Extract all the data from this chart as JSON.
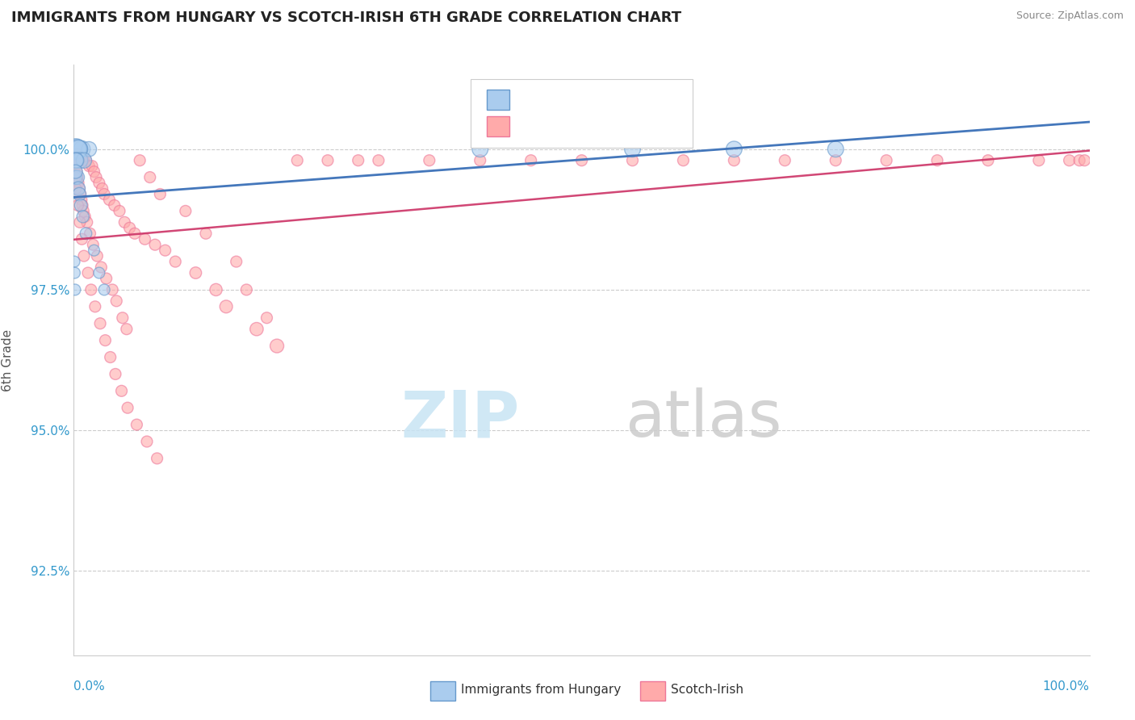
{
  "title": "IMMIGRANTS FROM HUNGARY VS SCOTCH-IRISH 6TH GRADE CORRELATION CHART",
  "source": "Source: ZipAtlas.com",
  "ylabel": "6th Grade",
  "ylim": [
    91.0,
    101.5
  ],
  "xlim": [
    0.0,
    100.0
  ],
  "yticks": [
    92.5,
    95.0,
    97.5,
    100.0
  ],
  "ytick_labels": [
    "92.5%",
    "95.0%",
    "97.5%",
    "100.0%"
  ],
  "blue_color": "#AACCEE",
  "pink_color": "#FFAAAA",
  "blue_edge_color": "#6699CC",
  "pink_edge_color": "#EE7799",
  "blue_line_color": "#4477BB",
  "pink_line_color": "#CC3366",
  "axis_color": "#3399CC",
  "watermark_zip_color": "#C8E4F4",
  "watermark_atlas_color": "#CCCCCC",
  "hungary_x": [
    0.3,
    0.8,
    1.5,
    0.2,
    0.5,
    0.4,
    0.6,
    1.0,
    0.15,
    0.25,
    0.1,
    0.35,
    0.45,
    0.55,
    0.7,
    0.9,
    1.2,
    2.0,
    2.5,
    3.0,
    0.05,
    0.08,
    0.12,
    40.0,
    55.0,
    65.0,
    75.0,
    0.18
  ],
  "hungary_y": [
    100.0,
    100.0,
    100.0,
    100.0,
    100.0,
    100.0,
    99.8,
    99.8,
    99.8,
    99.8,
    99.5,
    99.5,
    99.3,
    99.2,
    99.0,
    98.8,
    98.5,
    98.2,
    97.8,
    97.5,
    98.0,
    97.8,
    97.5,
    100.0,
    100.0,
    100.0,
    100.0,
    99.6
  ],
  "hungary_sizes": [
    300,
    220,
    180,
    350,
    250,
    280,
    200,
    190,
    200,
    180,
    170,
    160,
    150,
    140,
    130,
    120,
    110,
    100,
    100,
    100,
    100,
    100,
    100,
    200,
    200,
    200,
    200,
    150
  ],
  "scotch_x": [
    0.2,
    0.3,
    0.4,
    0.5,
    0.6,
    0.7,
    0.8,
    0.9,
    1.0,
    1.2,
    1.5,
    1.8,
    2.0,
    2.2,
    2.5,
    2.8,
    3.0,
    3.5,
    4.0,
    4.5,
    5.0,
    5.5,
    6.0,
    7.0,
    8.0,
    9.0,
    10.0,
    12.0,
    14.0,
    15.0,
    18.0,
    20.0,
    0.15,
    0.25,
    0.35,
    0.45,
    0.55,
    0.65,
    0.75,
    0.85,
    0.95,
    1.1,
    1.3,
    1.6,
    1.9,
    2.3,
    2.7,
    3.2,
    3.8,
    4.2,
    4.8,
    5.2,
    6.5,
    7.5,
    8.5,
    11.0,
    13.0,
    16.0,
    17.0,
    19.0,
    22.0,
    25.0,
    28.0,
    30.0,
    35.0,
    40.0,
    45.0,
    50.0,
    55.0,
    60.0,
    65.0,
    70.0,
    75.0,
    80.0,
    85.0,
    90.0,
    95.0,
    98.0,
    99.0,
    99.5,
    0.1,
    0.2,
    0.4,
    0.6,
    0.8,
    1.0,
    1.4,
    1.7,
    2.1,
    2.6,
    3.1,
    3.6,
    4.1,
    4.7,
    5.3,
    6.2,
    7.2,
    8.2
  ],
  "scotch_y": [
    99.9,
    99.9,
    99.9,
    99.8,
    99.8,
    99.8,
    99.8,
    99.8,
    99.8,
    99.8,
    99.7,
    99.7,
    99.6,
    99.5,
    99.4,
    99.3,
    99.2,
    99.1,
    99.0,
    98.9,
    98.7,
    98.6,
    98.5,
    98.4,
    98.3,
    98.2,
    98.0,
    97.8,
    97.5,
    97.2,
    96.8,
    96.5,
    99.7,
    99.6,
    99.5,
    99.4,
    99.3,
    99.2,
    99.1,
    99.0,
    98.9,
    98.8,
    98.7,
    98.5,
    98.3,
    98.1,
    97.9,
    97.7,
    97.5,
    97.3,
    97.0,
    96.8,
    99.8,
    99.5,
    99.2,
    98.9,
    98.5,
    98.0,
    97.5,
    97.0,
    99.8,
    99.8,
    99.8,
    99.8,
    99.8,
    99.8,
    99.8,
    99.8,
    99.8,
    99.8,
    99.8,
    99.8,
    99.8,
    99.8,
    99.8,
    99.8,
    99.8,
    99.8,
    99.8,
    99.8,
    99.5,
    99.3,
    99.0,
    98.7,
    98.4,
    98.1,
    97.8,
    97.5,
    97.2,
    96.9,
    96.6,
    96.3,
    96.0,
    95.7,
    95.4,
    95.1,
    94.8,
    94.5
  ],
  "scotch_sizes": [
    130,
    120,
    110,
    110,
    100,
    100,
    100,
    100,
    100,
    100,
    100,
    100,
    100,
    100,
    100,
    100,
    100,
    100,
    100,
    100,
    100,
    100,
    100,
    100,
    100,
    100,
    100,
    110,
    120,
    130,
    140,
    150,
    110,
    110,
    110,
    100,
    100,
    100,
    100,
    100,
    100,
    100,
    100,
    100,
    100,
    100,
    100,
    100,
    100,
    100,
    100,
    100,
    100,
    100,
    100,
    100,
    100,
    100,
    100,
    100,
    100,
    100,
    100,
    100,
    100,
    100,
    100,
    100,
    100,
    100,
    100,
    100,
    100,
    100,
    100,
    100,
    100,
    100,
    100,
    100,
    100,
    100,
    100,
    100,
    100,
    100,
    100,
    100,
    100,
    100,
    100,
    100,
    100,
    100,
    100,
    100,
    100,
    100
  ]
}
